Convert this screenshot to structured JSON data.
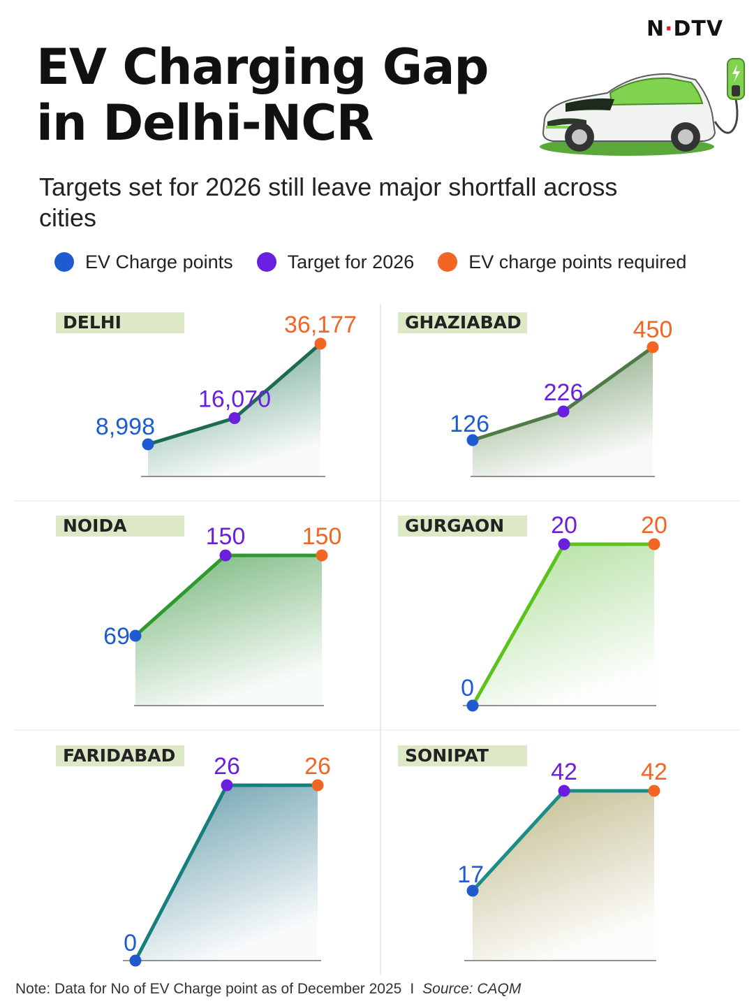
{
  "brand": {
    "logo": "NDTV",
    "logo_pre": "N",
    "logo_dot": "·",
    "logo_post": "DTV"
  },
  "title": "EV Charging Gap in Delhi-NCR",
  "subtitle": "Targets set for 2026 still leave major shortfall across cities",
  "legend": [
    {
      "label": "EV Charge points",
      "color": "#1f5bd0"
    },
    {
      "label": "Target for 2026",
      "color": "#6a1fe0"
    },
    {
      "label": "EV charge points required",
      "color": "#f26522"
    }
  ],
  "colors": {
    "current": "#1f5bd0",
    "target": "#6a1fe0",
    "required": "#f26522",
    "label_bg": "#dde9c6",
    "divider": "#c9d3e4"
  },
  "illustration": {
    "icon": "ev-car-charging-icon"
  },
  "chart_data": [
    {
      "type": "line",
      "city": "DELHI",
      "categories": [
        "EV Charge points",
        "Target for 2026",
        "EV charge points required"
      ],
      "values": [
        8998,
        16070,
        36177
      ],
      "value_labels": [
        "8,998",
        "16,070",
        "36,177"
      ],
      "line_color": "#1d6b55",
      "fill_color": "#3d8a6e"
    },
    {
      "type": "line",
      "city": "GHAZIABAD",
      "categories": [
        "EV Charge points",
        "Target for 2026",
        "EV charge points required"
      ],
      "values": [
        126,
        226,
        450
      ],
      "value_labels": [
        "126",
        "226",
        "450"
      ],
      "line_color": "#4f7a45",
      "fill_color": "#5e8a52"
    },
    {
      "type": "line",
      "city": "NOIDA",
      "categories": [
        "EV Charge points",
        "Target for 2026",
        "EV charge points required"
      ],
      "values": [
        69,
        150,
        150
      ],
      "value_labels": [
        "69",
        "150",
        "150"
      ],
      "line_color": "#2e9a2e",
      "fill_color": "#5aa860"
    },
    {
      "type": "line",
      "city": "GURGAON",
      "categories": [
        "EV Charge points",
        "Target for 2026",
        "EV charge points required"
      ],
      "values": [
        0,
        20,
        20
      ],
      "value_labels": [
        "0",
        "20",
        "20"
      ],
      "line_color": "#5cc21e",
      "fill_color": "#9ed886"
    },
    {
      "type": "line",
      "city": "FARIDABAD",
      "categories": [
        "EV Charge points",
        "Target for 2026",
        "EV charge points required"
      ],
      "values": [
        0,
        26,
        26
      ],
      "value_labels": [
        "0",
        "26",
        "26"
      ],
      "line_color": "#177e7e",
      "fill_color": "#4a8b9c"
    },
    {
      "type": "line",
      "city": "SONIPAT",
      "categories": [
        "EV Charge points",
        "Target for 2026",
        "EV charge points required"
      ],
      "values": [
        17,
        42,
        42
      ],
      "value_labels": [
        "17",
        "42",
        "42"
      ],
      "line_color": "#1c8c86",
      "fill_color": "#b4ad74"
    }
  ],
  "footnote": {
    "note": "Note: Data for No of EV Charge point as of December 2025",
    "separator": "I",
    "source": "Source: CAQM"
  }
}
